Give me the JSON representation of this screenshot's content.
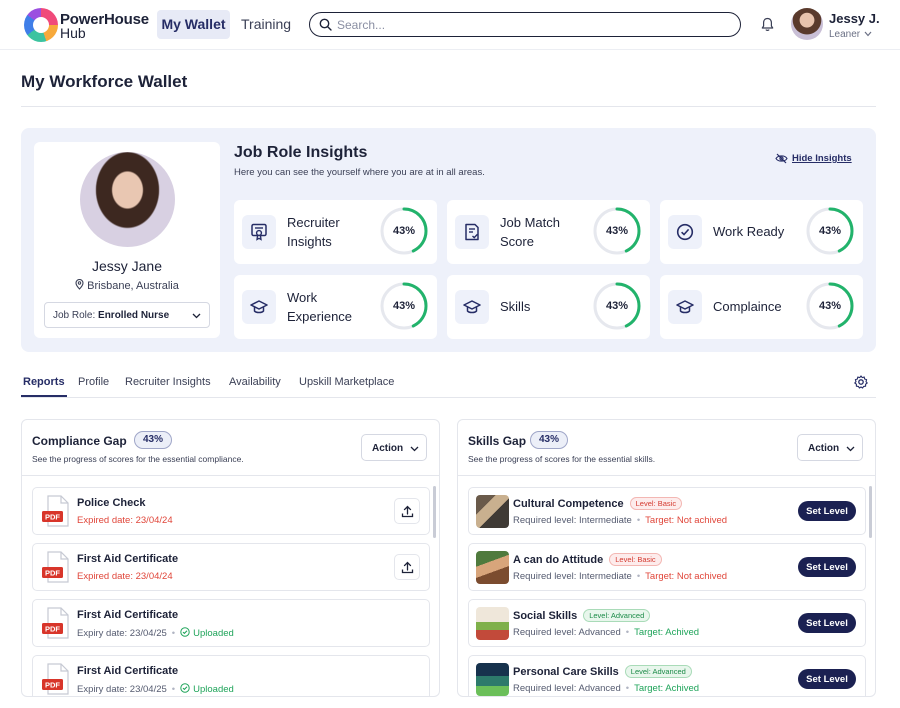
{
  "app": {
    "brand_line1": "PowerHouse",
    "brand_line2": "Hub"
  },
  "nav": {
    "my_wallet": "My Wallet",
    "training": "Training"
  },
  "search": {
    "placeholder": "Search..."
  },
  "user": {
    "name": "Jessy J.",
    "role": "Leaner"
  },
  "page": {
    "title": "My Workforce Wallet"
  },
  "profile": {
    "name": "Jessy Jane",
    "location": "Brisbane, Australia",
    "job_role_label": "Job Role:",
    "job_role_value": "Enrolled Nurse"
  },
  "insights": {
    "title": "Job Role Insights",
    "subtitle": "Here you can see the yourself where you are at in all areas.",
    "hide_label": "Hide Insights",
    "metrics": [
      {
        "line1": "Recruiter",
        "line2": "Insights",
        "percent": "43%",
        "value": 0.43,
        "icon": "certificate-icon"
      },
      {
        "line1": "Job Match",
        "line2": "Score",
        "percent": "43%",
        "value": 0.43,
        "icon": "document-check-icon"
      },
      {
        "line1": "Work Ready",
        "line2": "",
        "percent": "43%",
        "value": 0.43,
        "icon": "check-circle-icon"
      },
      {
        "line1": "Work",
        "line2": "Experience",
        "percent": "43%",
        "value": 0.43,
        "icon": "graduation-cap-icon"
      },
      {
        "line1": "Skills",
        "line2": "",
        "percent": "43%",
        "value": 0.43,
        "icon": "graduation-cap-icon"
      },
      {
        "line1": "Complaince",
        "line2": "",
        "percent": "43%",
        "value": 0.43,
        "icon": "graduation-cap-icon"
      }
    ],
    "ring_color": "#22b36b",
    "ring_track_color": "#e6e8ee"
  },
  "tabs": [
    "Reports",
    "Profile",
    "Recruiter Insights",
    "Availability",
    "Upskill Marketplace"
  ],
  "compliance": {
    "title": "Compliance Gap",
    "percent": "43%",
    "subtitle": "See the progress of scores for the essential compliance.",
    "action_label": "Action",
    "items": [
      {
        "title": "Police Check",
        "status_text": "Expired date: 23/04/24",
        "status": "expired",
        "uploaded": ""
      },
      {
        "title": "First Aid Certificate",
        "status_text": "Expired date: 23/04/24",
        "status": "expired",
        "uploaded": ""
      },
      {
        "title": "First Aid Certificate",
        "status_text": "Expiry date: 23/04/25",
        "status": "valid",
        "uploaded": "Uploaded"
      },
      {
        "title": "First Aid Certificate",
        "status_text": "Expiry date: 23/04/25",
        "status": "valid",
        "uploaded": "Uploaded"
      }
    ]
  },
  "skills": {
    "title": "Skills Gap",
    "percent": "43%",
    "subtitle": "See the progress of scores for the essential skills.",
    "action_label": "Action",
    "set_level_label": "Set Level",
    "items": [
      {
        "title": "Cultural Competence",
        "level": "Level: Basic",
        "level_type": "basic",
        "required": "Required level: Intermediate",
        "target": "Target: Not achived",
        "target_status": "not"
      },
      {
        "title": "A can do Attitude",
        "level": "Level: Basic",
        "level_type": "basic",
        "required": "Required level: Intermediate",
        "target": "Target: Not achived",
        "target_status": "not"
      },
      {
        "title": "Social Skills",
        "level": "Level: Advanced",
        "level_type": "adv",
        "required": "Required level: Advanced",
        "target": "Target: Achived",
        "target_status": "ok"
      },
      {
        "title": "Personal Care Skills",
        "level": "Level: Advanced",
        "level_type": "adv",
        "required": "Required level: Advanced",
        "target": "Target: Achived",
        "target_status": "ok"
      }
    ]
  }
}
